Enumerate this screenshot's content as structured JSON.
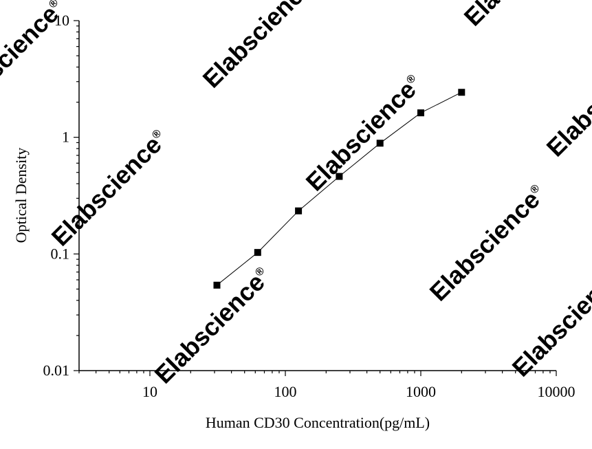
{
  "chart_data": {
    "type": "scatter",
    "title": "",
    "xlabel": "Human CD30 Concentration(pg/mL)",
    "ylabel": "Optical Density",
    "xscale": "log",
    "yscale": "log",
    "xlim": [
      3,
      10000
    ],
    "ylim": [
      0.01,
      10
    ],
    "x_ticks": [
      10,
      100,
      1000,
      10000
    ],
    "x_tick_labels": [
      "10",
      "100",
      "1000",
      "10000"
    ],
    "y_ticks": [
      0.01,
      0.1,
      1,
      10
    ],
    "y_tick_labels": [
      "0.01",
      "0.1",
      "1",
      "10"
    ],
    "grid": false,
    "legend": "none",
    "series": [
      {
        "marker": "square",
        "line": "connected",
        "x": [
          31.25,
          62.5,
          125,
          250,
          500,
          1000,
          2000
        ],
        "y": [
          0.054,
          0.103,
          0.234,
          0.462,
          0.89,
          1.62,
          2.43
        ]
      }
    ]
  },
  "watermark": {
    "text": "Elabscience",
    "symbol": "®"
  },
  "colors": {
    "axis": "#000000",
    "marker": "#000000",
    "line": "#000000",
    "watermark": "#e6e6e6"
  }
}
